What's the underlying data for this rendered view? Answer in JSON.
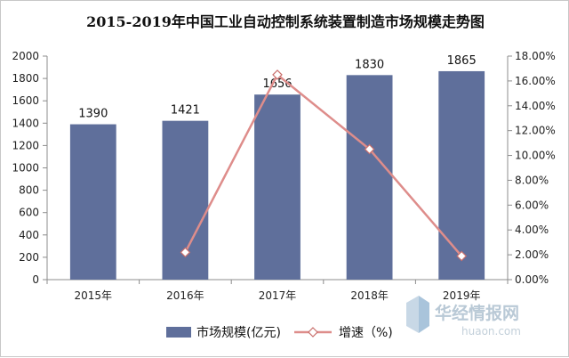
{
  "chart_data": {
    "type": "bar",
    "title": "2015-2019年中国工业自动控制系统装置制造市场规模走势图",
    "categories": [
      "2015年",
      "2016年",
      "2017年",
      "2018年",
      "2019年"
    ],
    "series": [
      {
        "name": "市场规模(亿元)",
        "type": "bar",
        "axis": "left",
        "values": [
          1390,
          1421,
          1656,
          1830,
          1865
        ],
        "labels": [
          "1390",
          "1421",
          "1656",
          "1830",
          "1865"
        ]
      },
      {
        "name": "增速（%)",
        "type": "line",
        "axis": "right",
        "values": [
          null,
          2.2,
          16.5,
          10.5,
          1.9
        ]
      }
    ],
    "y_left": {
      "min": 0,
      "max": 2000,
      "step": 200,
      "ticks": [
        "0",
        "200",
        "400",
        "600",
        "800",
        "1000",
        "1200",
        "1400",
        "1600",
        "1800",
        "2000"
      ]
    },
    "y_right": {
      "min": 0,
      "max": 18,
      "step": 2,
      "ticks": [
        "0.00%",
        "2.00%",
        "4.00%",
        "6.00%",
        "8.00%",
        "10.00%",
        "12.00%",
        "14.00%",
        "16.00%",
        "18.00%"
      ]
    },
    "grid": false,
    "legend": "bottom",
    "colors": {
      "bar": "#5f6f9b",
      "line": "#de8d8b",
      "marker_edge": "#c9706d",
      "axis": "#8c8c8c"
    }
  },
  "watermark": {
    "name": "华经情报网",
    "url": "huaon.com"
  }
}
